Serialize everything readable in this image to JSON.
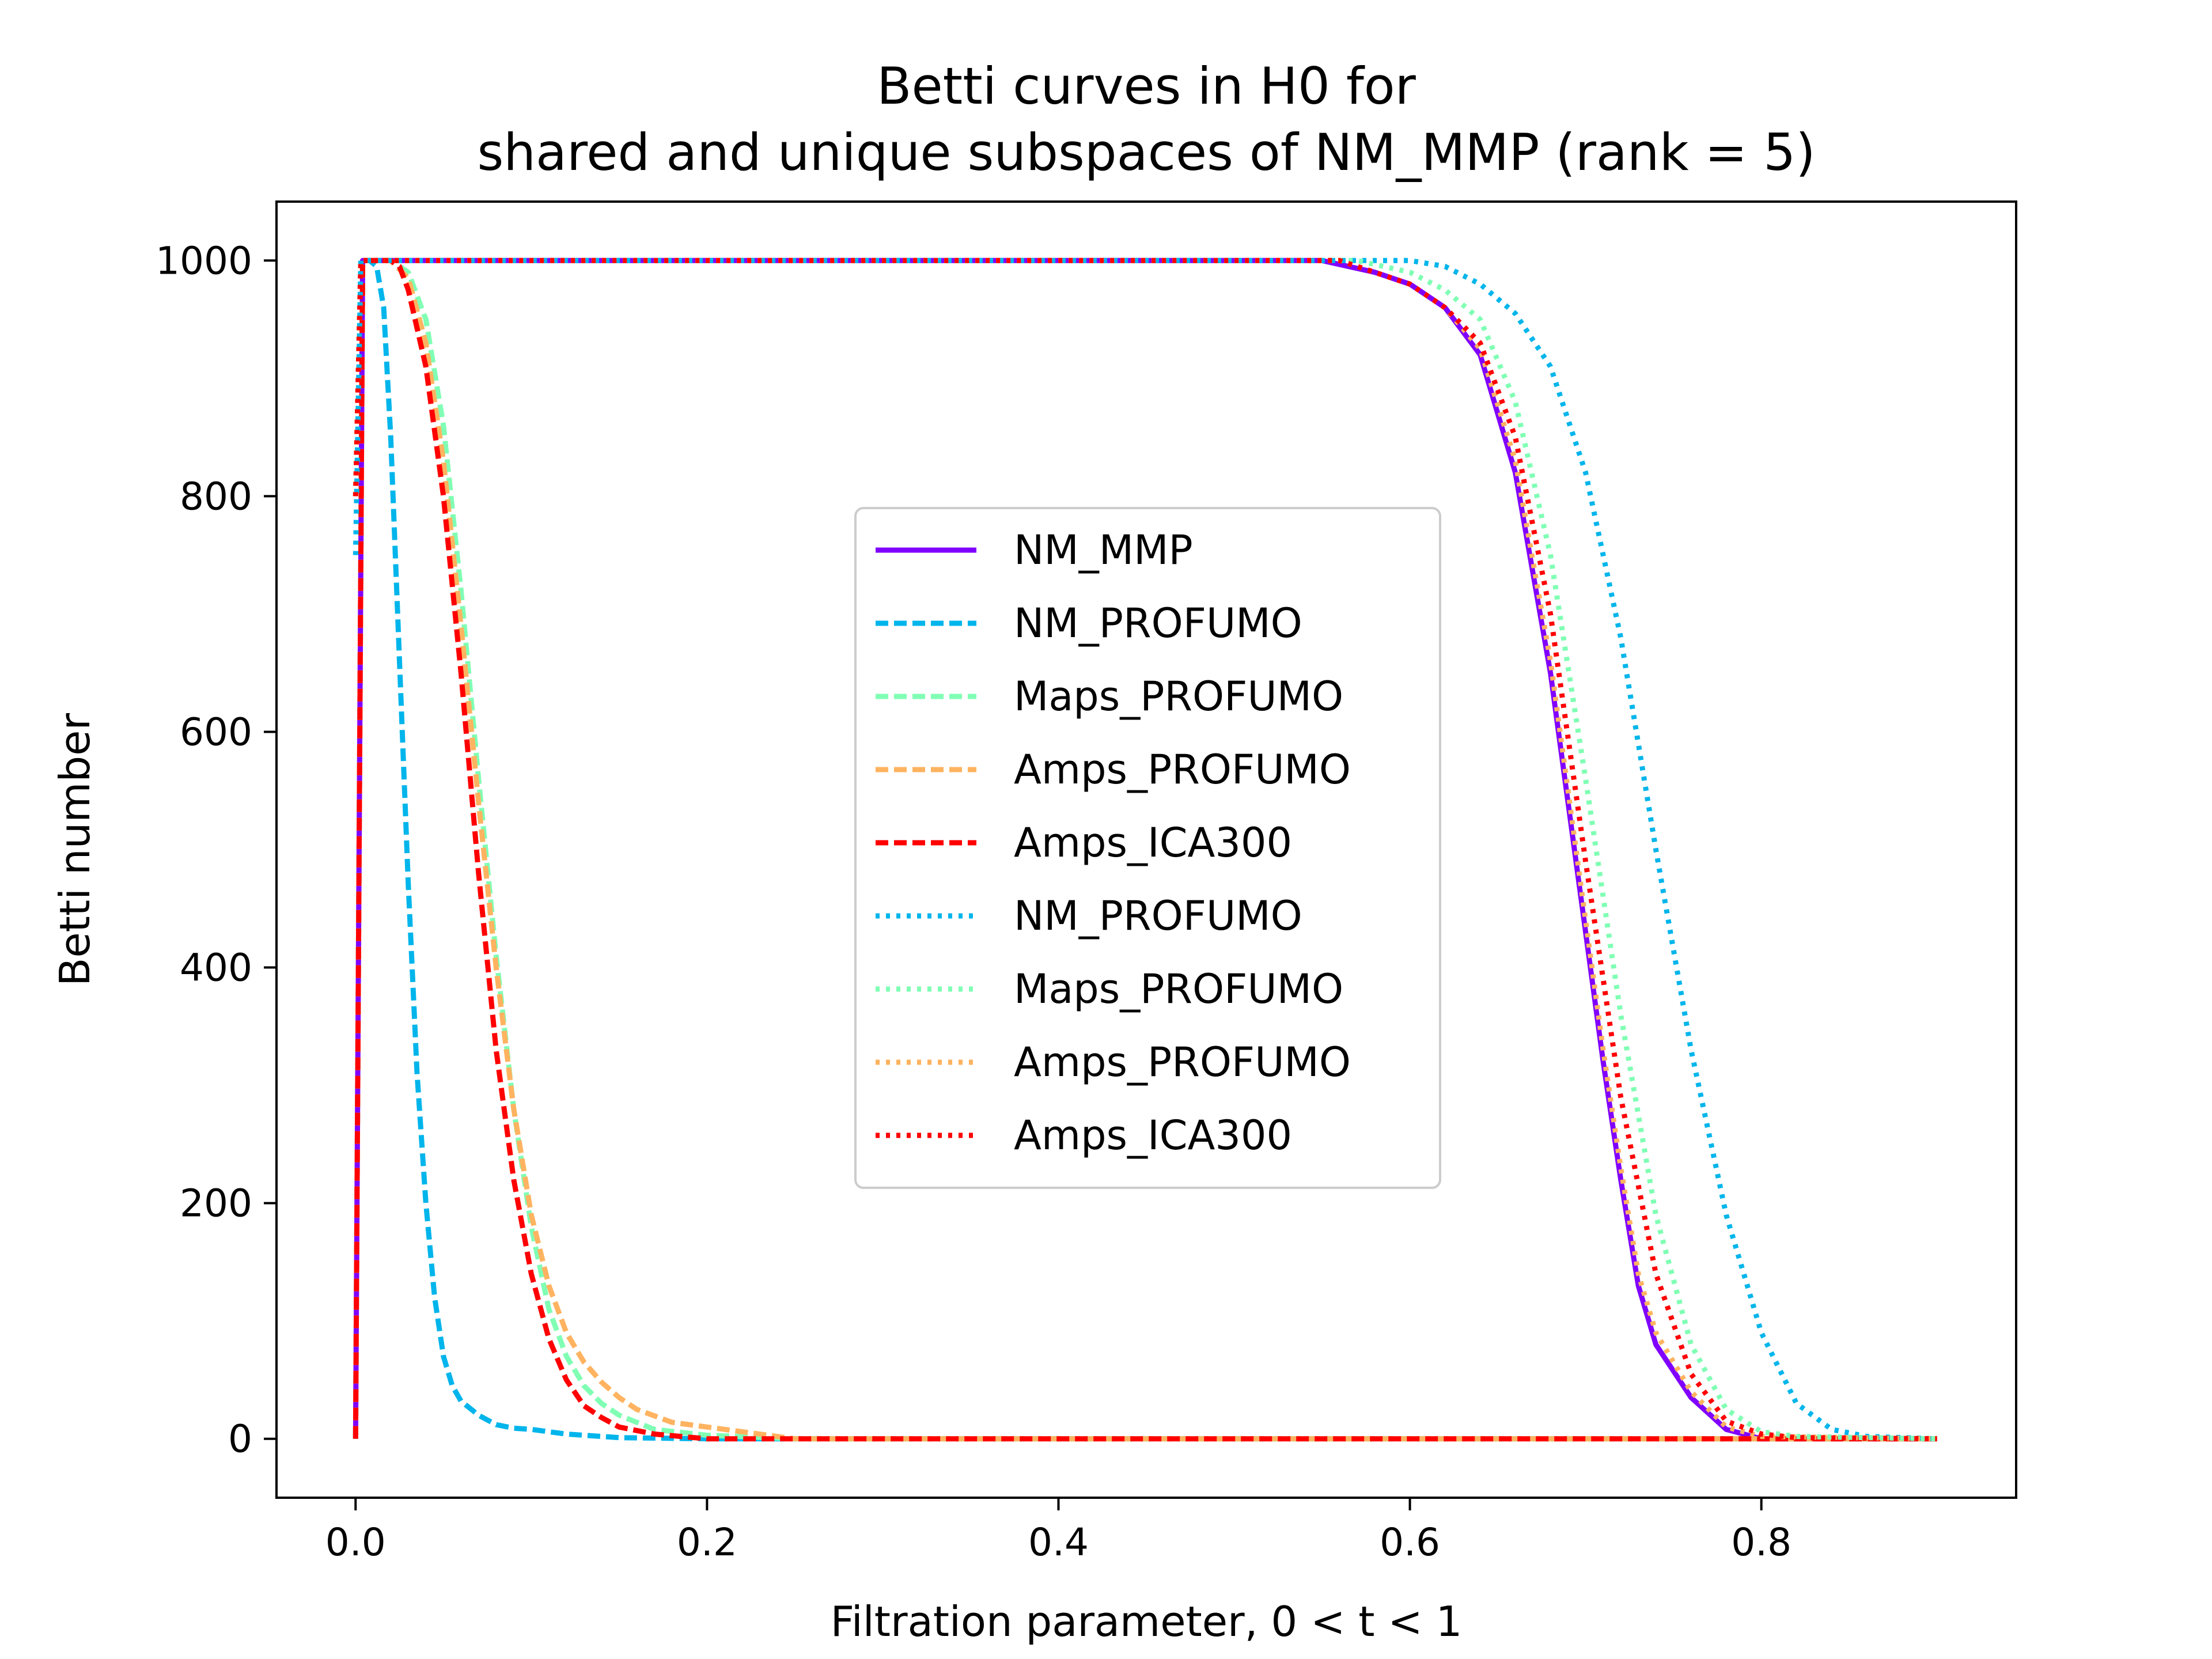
{
  "chart_data": {
    "type": "line",
    "title": [
      "Betti curves in H0 for",
      "shared and unique subspaces of NM_MMP (rank = 5)"
    ],
    "xlabel": "Filtration parameter, 0 < t < 1",
    "ylabel": "Betti number",
    "xlim": [
      -0.045,
      0.945
    ],
    "ylim": [
      -50,
      1050
    ],
    "xticks": [
      0.0,
      0.2,
      0.4,
      0.6,
      0.8
    ],
    "xtick_labels": [
      "0.0",
      "0.2",
      "0.4",
      "0.6",
      "0.8"
    ],
    "yticks": [
      0,
      200,
      400,
      600,
      800,
      1000
    ],
    "ytick_labels": [
      "0",
      "200",
      "400",
      "600",
      "800",
      "1000"
    ],
    "grid": false,
    "legend_position": "center",
    "series": [
      {
        "name": "NM_MMP",
        "color": "#8000ff",
        "dash": "solid",
        "x": [
          0,
          0.004,
          0.008,
          0.55,
          0.58,
          0.6,
          0.62,
          0.64,
          0.66,
          0.68,
          0.7,
          0.71,
          0.72,
          0.73,
          0.74,
          0.76,
          0.78,
          0.8,
          0.9
        ],
        "y": [
          0,
          1000,
          1000,
          1000,
          990,
          980,
          960,
          920,
          820,
          650,
          430,
          320,
          220,
          130,
          80,
          35,
          8,
          0,
          0
        ]
      },
      {
        "name": "NM_PROFUMO",
        "color": "#00b5eb",
        "dash": "dashed",
        "x": [
          0,
          0.004,
          0.008,
          0.012,
          0.016,
          0.02,
          0.025,
          0.03,
          0.035,
          0.04,
          0.045,
          0.05,
          0.055,
          0.06,
          0.07,
          0.08,
          0.09,
          0.1,
          0.12,
          0.15,
          0.2,
          0.9
        ],
        "y": [
          0,
          1000,
          1000,
          995,
          960,
          850,
          660,
          470,
          310,
          200,
          120,
          70,
          45,
          32,
          20,
          12,
          9,
          8,
          4,
          1,
          0,
          0
        ]
      },
      {
        "name": "Maps_PROFUMO",
        "color": "#80ffb4",
        "dash": "dashed",
        "x": [
          0,
          0.004,
          0.01,
          0.02,
          0.03,
          0.04,
          0.05,
          0.06,
          0.07,
          0.08,
          0.09,
          0.1,
          0.11,
          0.12,
          0.13,
          0.14,
          0.15,
          0.17,
          0.2,
          0.25,
          0.9
        ],
        "y": [
          0,
          1000,
          1000,
          1000,
          990,
          950,
          860,
          720,
          560,
          410,
          280,
          180,
          110,
          70,
          45,
          30,
          20,
          8,
          3,
          0,
          0
        ]
      },
      {
        "name": "Amps_PROFUMO",
        "color": "#ffb360",
        "dash": "dashed",
        "x": [
          0,
          0.004,
          0.01,
          0.02,
          0.03,
          0.04,
          0.05,
          0.06,
          0.07,
          0.08,
          0.09,
          0.1,
          0.11,
          0.12,
          0.13,
          0.14,
          0.15,
          0.16,
          0.18,
          0.2,
          0.22,
          0.25,
          0.9
        ],
        "y": [
          0,
          1000,
          1000,
          1000,
          985,
          930,
          830,
          690,
          540,
          400,
          280,
          190,
          130,
          90,
          65,
          48,
          35,
          25,
          14,
          10,
          6,
          0,
          0
        ]
      },
      {
        "name": "Amps_ICA300",
        "color": "#ff0000",
        "dash": "dashed",
        "x": [
          0,
          0.004,
          0.01,
          0.02,
          0.025,
          0.03,
          0.04,
          0.05,
          0.06,
          0.07,
          0.08,
          0.09,
          0.1,
          0.11,
          0.12,
          0.13,
          0.14,
          0.15,
          0.17,
          0.2,
          0.9
        ],
        "y": [
          0,
          1000,
          1000,
          1000,
          995,
          975,
          910,
          800,
          650,
          480,
          330,
          220,
          140,
          85,
          50,
          28,
          18,
          10,
          4,
          0,
          0
        ]
      },
      {
        "name": "NM_PROFUMO",
        "color": "#00b5eb",
        "dash": "dotted",
        "x": [
          0,
          0.003,
          0.008,
          0.6,
          0.62,
          0.64,
          0.66,
          0.68,
          0.7,
          0.72,
          0.74,
          0.76,
          0.78,
          0.8,
          0.82,
          0.84,
          0.86,
          0.9
        ],
        "y": [
          750,
          1000,
          1000,
          1000,
          995,
          980,
          955,
          910,
          820,
          680,
          500,
          330,
          190,
          90,
          30,
          8,
          2,
          0
        ]
      },
      {
        "name": "Maps_PROFUMO",
        "color": "#80ffb4",
        "dash": "dotted",
        "x": [
          0,
          0.003,
          0.008,
          0.57,
          0.6,
          0.62,
          0.64,
          0.66,
          0.68,
          0.7,
          0.72,
          0.74,
          0.76,
          0.78,
          0.8,
          0.82,
          0.9
        ],
        "y": [
          800,
          1000,
          1000,
          1000,
          990,
          975,
          950,
          880,
          750,
          560,
          360,
          190,
          80,
          25,
          6,
          2,
          0
        ]
      },
      {
        "name": "Amps_PROFUMO",
        "color": "#ffb360",
        "dash": "dotted",
        "x": [
          0,
          0.003,
          0.008,
          0.56,
          0.58,
          0.6,
          0.62,
          0.64,
          0.66,
          0.68,
          0.7,
          0.71,
          0.72,
          0.73,
          0.74,
          0.76,
          0.78,
          0.8,
          0.9
        ],
        "y": [
          800,
          1000,
          1000,
          1000,
          990,
          980,
          960,
          925,
          830,
          660,
          440,
          330,
          230,
          140,
          90,
          40,
          10,
          2,
          0
        ]
      },
      {
        "name": "Amps_ICA300",
        "color": "#ff0000",
        "dash": "dotted",
        "x": [
          0,
          0.003,
          0.008,
          0.56,
          0.58,
          0.6,
          0.62,
          0.64,
          0.66,
          0.68,
          0.7,
          0.72,
          0.74,
          0.76,
          0.78,
          0.8,
          0.82,
          0.9
        ],
        "y": [
          800,
          1000,
          1000,
          1000,
          990,
          980,
          960,
          930,
          850,
          700,
          490,
          290,
          140,
          55,
          15,
          4,
          1,
          0
        ]
      }
    ]
  }
}
